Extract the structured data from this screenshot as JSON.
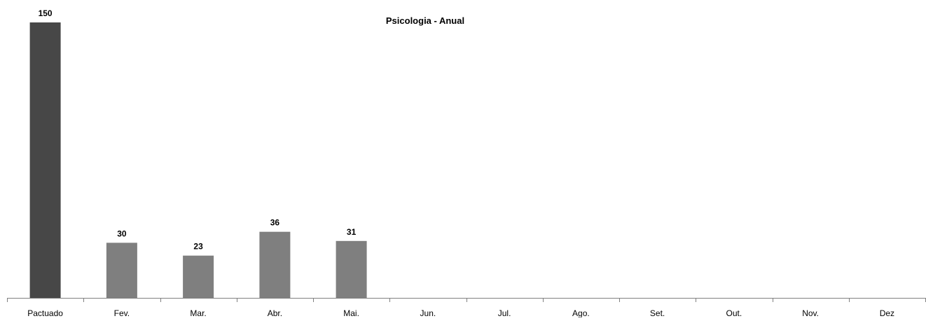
{
  "chart_data": {
    "type": "bar",
    "title": "Psicologia - Anual",
    "xlabel": "",
    "ylabel": "",
    "categories": [
      "Pactuado",
      "Fev.",
      "Mar.",
      "Abr.",
      "Mai.",
      "Jun.",
      "Jul.",
      "Ago.",
      "Set.",
      "Out.",
      "Nov.",
      "Dez"
    ],
    "values": [
      150,
      30,
      23,
      36,
      31,
      null,
      null,
      null,
      null,
      null,
      null,
      null
    ],
    "value_labels": [
      "150",
      "30",
      "23",
      "36",
      "31",
      "",
      "",
      "",
      "",
      "",
      "",
      ""
    ],
    "ylim": [
      0,
      150
    ],
    "grid": false,
    "legend": "none",
    "colors": {
      "first_bar": "#474747",
      "bars": "#7f7f7f",
      "axis": "#808080"
    }
  }
}
